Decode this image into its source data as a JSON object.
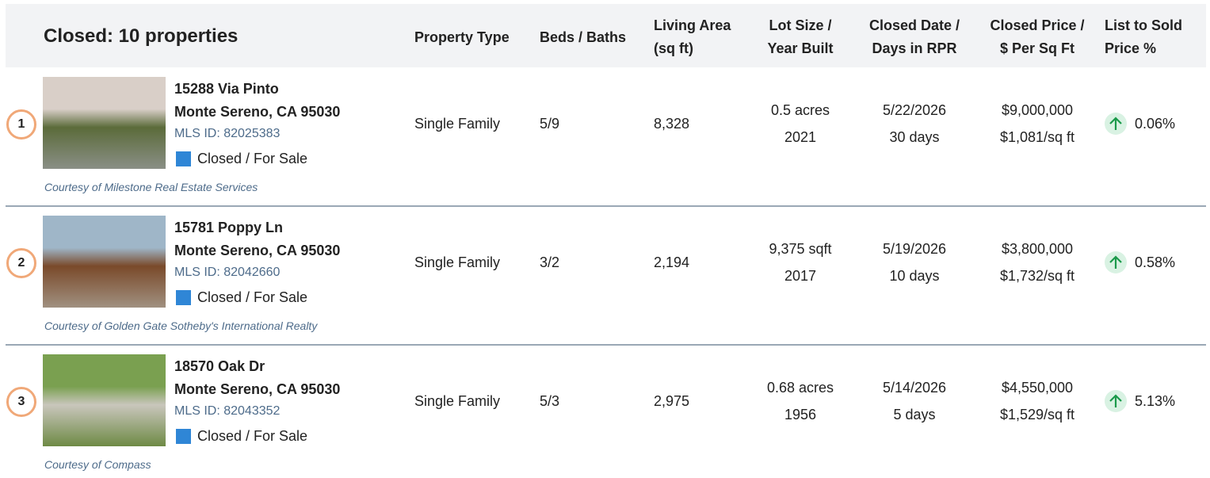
{
  "header": {
    "title": "Closed: 10 properties",
    "columns": [
      [
        "Property Type"
      ],
      [
        "Beds / Baths"
      ],
      [
        "Living Area",
        "(sq ft)"
      ],
      [
        "Lot Size /",
        "Year Built"
      ],
      [
        "Closed Date /",
        "Days in RPR"
      ],
      [
        "Closed Price /",
        "$ Per Sq Ft"
      ],
      [
        "List to Sold",
        "Price %"
      ]
    ]
  },
  "rows": [
    {
      "index": "1",
      "address": "15288 Via Pinto",
      "city": "Monte Sereno, CA 95030",
      "mls": "MLS ID: 82025383",
      "status": "Closed / For Sale",
      "courtesy": "Courtesy of Milestone Real Estate Services",
      "property_type": "Single Family",
      "beds_baths": "5/9",
      "living_area": "8,328",
      "lot_size": "0.5 acres",
      "year_built": "2021",
      "closed_date": "5/22/2026",
      "days": "30 days",
      "price": "$9,000,000",
      "per_sqft": "$1,081/sq ft",
      "list_to_sold": "0.06%"
    },
    {
      "index": "2",
      "address": "15781 Poppy Ln",
      "city": "Monte Sereno, CA 95030",
      "mls": "MLS ID: 82042660",
      "status": "Closed / For Sale",
      "courtesy": "Courtesy of Golden Gate Sotheby's International Realty",
      "property_type": "Single Family",
      "beds_baths": "3/2",
      "living_area": "2,194",
      "lot_size": "9,375 sqft",
      "year_built": "2017",
      "closed_date": "5/19/2026",
      "days": "10 days",
      "price": "$3,800,000",
      "per_sqft": "$1,732/sq ft",
      "list_to_sold": "0.58%"
    },
    {
      "index": "3",
      "address": "18570 Oak Dr",
      "city": "Monte Sereno, CA 95030",
      "mls": "MLS ID: 82043352",
      "status": "Closed / For Sale",
      "courtesy": "Courtesy of Compass",
      "property_type": "Single Family",
      "beds_baths": "5/3",
      "living_area": "2,975",
      "lot_size": "0.68 acres",
      "year_built": "1956",
      "closed_date": "5/14/2026",
      "days": "5 days",
      "price": "$4,550,000",
      "per_sqft": "$1,529/sq ft",
      "list_to_sold": "5.13%"
    }
  ]
}
